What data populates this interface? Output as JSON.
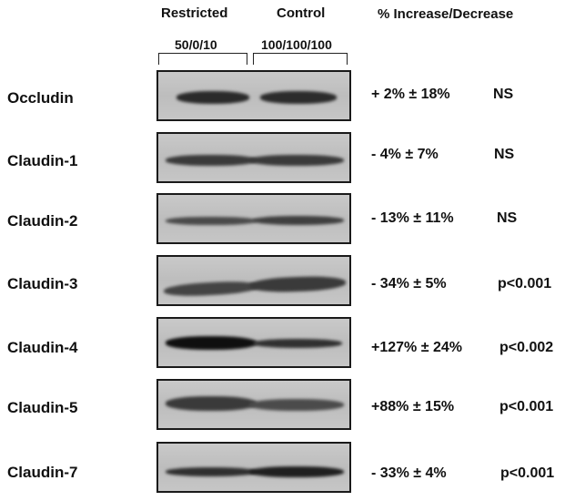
{
  "header": {
    "restricted": "Restricted",
    "control": "Control",
    "change": "% Increase/Decrease",
    "restricted_dose": "50/0/10",
    "control_dose": "100/100/100"
  },
  "rows": [
    {
      "protein": "Occludin",
      "change": "+ 2% ± 18%",
      "significance": "NS"
    },
    {
      "protein": "Claudin-1",
      "change": "- 4% ± 7%",
      "significance": "NS"
    },
    {
      "protein": "Claudin-2",
      "change": "- 13% ± 11%",
      "significance": "NS"
    },
    {
      "protein": "Claudin-3",
      "change": "- 34% ± 5%",
      "significance": "p<0.001"
    },
    {
      "protein": "Claudin-4",
      "change": "+127% ± 24%",
      "significance": "p<0.002"
    },
    {
      "protein": "Claudin-5",
      "change": "+88% ± 15%",
      "significance": "p<0.001"
    },
    {
      "protein": "Claudin-7",
      "change": "- 33% ± 4%",
      "significance": "p<0.001"
    }
  ]
}
